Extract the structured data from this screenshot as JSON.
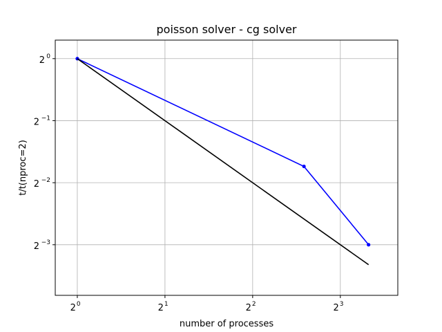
{
  "chart_data": {
    "type": "line",
    "title": "poisson solver - cg solver",
    "xlabel": "number of processes",
    "ylabel": "t/t(nproc=2)",
    "x_scale": "log2",
    "y_scale": "log2",
    "xlim": [
      0.84,
      12.6
    ],
    "ylim": [
      0.071,
      1.23
    ],
    "grid": true,
    "x_ticks": [
      {
        "value": 1,
        "base": "2",
        "exp": "0"
      },
      {
        "value": 2,
        "base": "2",
        "exp": "1"
      },
      {
        "value": 4,
        "base": "2",
        "exp": "2"
      },
      {
        "value": 8,
        "base": "2",
        "exp": "3"
      }
    ],
    "y_ticks": [
      {
        "value": 1,
        "base": "2",
        "exp": "0"
      },
      {
        "value": 0.5,
        "base": "2",
        "exp": "−1"
      },
      {
        "value": 0.25,
        "base": "2",
        "exp": "−2"
      },
      {
        "value": 0.125,
        "base": "2",
        "exp": "−3"
      }
    ],
    "series": [
      {
        "x": [
          1,
          6,
          10
        ],
        "y": [
          1,
          0.3,
          0.125
        ],
        "color": "#0000ff",
        "marker": "point"
      },
      {
        "x": [
          1,
          10
        ],
        "y": [
          1,
          0.1
        ],
        "color": "#000000",
        "marker": "none"
      }
    ]
  }
}
